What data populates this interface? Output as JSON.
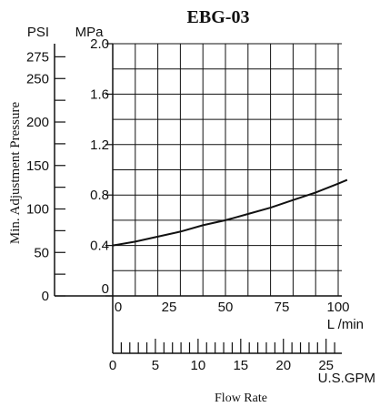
{
  "chart_data": {
    "type": "line",
    "title": "EBG-03",
    "ylabel": "Min. Adjustment Pressure",
    "xlabel": "Flow Rate",
    "y_axes": [
      {
        "unit": "PSI",
        "ticks": [
          "275",
          "250",
          "200",
          "150",
          "100",
          "50",
          "0"
        ]
      },
      {
        "unit": "MPa",
        "ticks": [
          "2.0",
          "1.6",
          "1.2",
          "0.8",
          "0.4",
          "0"
        ]
      }
    ],
    "x_axes": [
      {
        "unit": "L /min",
        "ticks": [
          "0",
          "25",
          "50",
          "75",
          "100"
        ]
      },
      {
        "unit": "U.S.GPM",
        "ticks": [
          "0",
          "5",
          "10",
          "15",
          "20",
          "25"
        ]
      }
    ],
    "ylim_mpa": [
      0,
      2.0
    ],
    "xlim_lpm": [
      0,
      100
    ],
    "grid": true,
    "series": [
      {
        "x": [
          0,
          10,
          20,
          30,
          40,
          50,
          60,
          70,
          80,
          90,
          100,
          104
        ],
        "y": [
          0.4,
          0.43,
          0.47,
          0.51,
          0.56,
          0.6,
          0.65,
          0.7,
          0.76,
          0.82,
          0.89,
          0.92
        ]
      }
    ]
  }
}
